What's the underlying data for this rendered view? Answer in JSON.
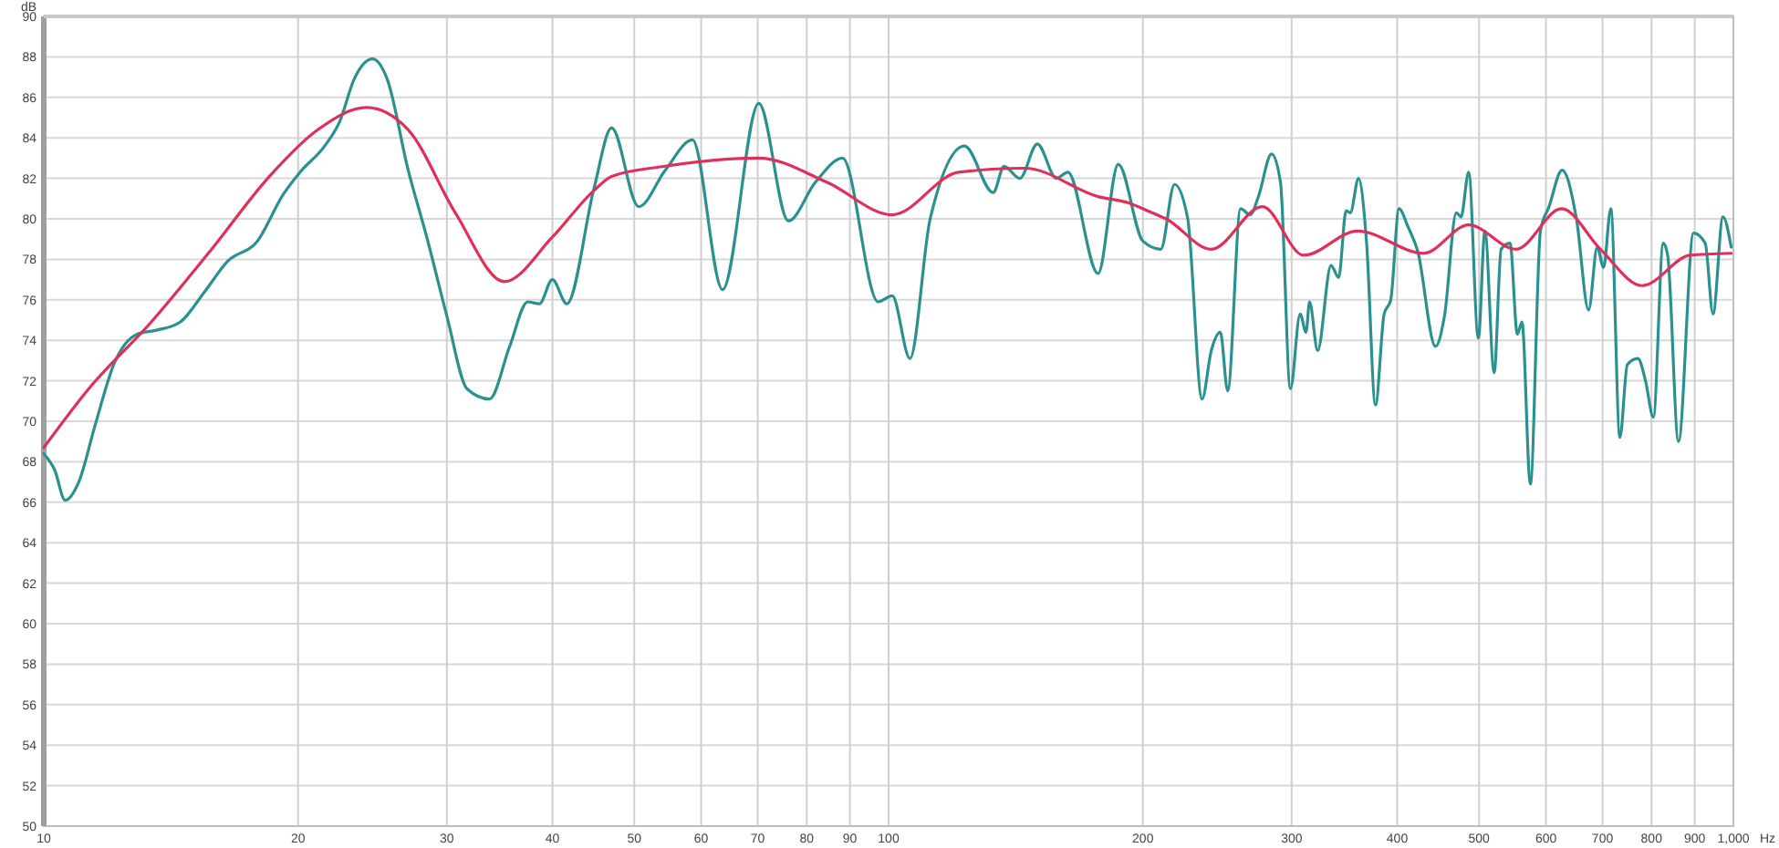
{
  "chart_data": {
    "type": "line",
    "xlabel": "Hz",
    "ylabel": "dB",
    "log": "x",
    "grid": true,
    "line_style": "solid",
    "xlim": [
      10,
      1000
    ],
    "ylim": [
      50,
      90
    ],
    "xticks": [
      10,
      20,
      30,
      40,
      50,
      60,
      70,
      80,
      90,
      100,
      200,
      300,
      400,
      500,
      600,
      700,
      800,
      900,
      {
        "value": 1000,
        "label": "1,000"
      }
    ],
    "yticks": [
      50,
      52,
      54,
      56,
      58,
      60,
      62,
      64,
      66,
      68,
      70,
      72,
      74,
      76,
      78,
      80,
      82,
      84,
      86,
      88,
      90
    ],
    "series": [
      {
        "color": "#2a9090",
        "x": [
          10,
          10.3,
          10.6,
          11,
          11.5,
          12.1,
          12.9,
          13.6,
          14.5,
          15.5,
          16.5,
          17.9,
          19.2,
          20.1,
          21.5,
          22.4,
          23.3,
          24.5,
          25.5,
          27,
          28.4,
          30,
          31.7,
          33.7,
          35.6,
          37.4,
          38.6,
          40,
          41.6,
          44.8,
          47,
          50.6,
          54.4,
          58.6,
          63.6,
          70.2,
          76.1,
          81.9,
          88.2,
          97.2,
          101,
          106,
          112,
          123,
          133,
          137,
          143,
          150,
          158,
          163,
          177,
          187,
          200,
          210,
          218,
          226,
          235,
          241,
          247,
          252,
          261,
          268,
          274,
          284,
          291,
          299,
          307,
          312,
          315,
          322,
          334,
          341,
          348,
          352,
          360,
          368,
          377,
          386,
          393,
          402,
          412,
          423,
          444,
          455,
          470,
          476,
          486,
          499,
          508,
          521,
          531,
          544,
          555,
          562,
          575,
          591,
          605,
          627,
          652,
          674,
          690,
          702,
          716,
          734,
          749,
          771,
          787,
          804,
          826,
          836,
          861,
          897,
          926,
          946,
          972,
          994
        ],
        "values": [
          68.4,
          67.6,
          66.1,
          67,
          69.8,
          72.8,
          74.3,
          74.5,
          74.9,
          76.4,
          77.9,
          78.9,
          81.2,
          82.3,
          83.6,
          84.8,
          86.9,
          87.9,
          86.9,
          82.4,
          79.1,
          75.2,
          71.6,
          71.1,
          73.7,
          75.9,
          75.8,
          77,
          75.8,
          81.5,
          84.5,
          80.6,
          82.4,
          83.9,
          76.5,
          85.7,
          79.9,
          81.8,
          83,
          75.9,
          76.2,
          73.1,
          80,
          83.6,
          81.3,
          82.6,
          82,
          83.7,
          82,
          82.3,
          77.3,
          82.7,
          78.9,
          78.5,
          81.7,
          80,
          71.1,
          73.5,
          74.4,
          71.5,
          80.5,
          80.2,
          81.1,
          83.2,
          81.8,
          71.6,
          75.3,
          74.4,
          75.9,
          73.5,
          77.7,
          77.1,
          80.4,
          80.3,
          82,
          78.8,
          70.8,
          75.3,
          76,
          80.5,
          79.6,
          78.4,
          73.7,
          75.2,
          80.3,
          80.1,
          82.3,
          74.1,
          79.4,
          72.4,
          78.5,
          78.8,
          74.3,
          74.9,
          66.9,
          79.4,
          80.6,
          82.4,
          80,
          75.5,
          78.6,
          77.6,
          80.5,
          69.2,
          72.8,
          73.1,
          72,
          70.2,
          78.8,
          78.2,
          69,
          79.3,
          78.8,
          75.3,
          80.1,
          78.6
        ]
      },
      {
        "color": "#e0305a",
        "x": [
          10,
          11.3,
          13.4,
          15.8,
          18.5,
          21.1,
          24.1,
          27,
          30.7,
          35.1,
          40,
          44.8,
          47,
          54.4,
          70.2,
          84.6,
          101,
          121,
          145,
          177,
          192,
          205,
          213,
          241,
          277,
          310,
          359,
          430,
          486,
          553,
          626,
          696,
          780,
          889,
          994
        ],
        "values": [
          68.7,
          71.6,
          74.9,
          78.5,
          82.1,
          84.4,
          85.5,
          84.4,
          80.3,
          76.9,
          79.1,
          81.4,
          82.1,
          82.6,
          83,
          81.8,
          80.2,
          82.3,
          82.5,
          81.1,
          80.8,
          80.3,
          80,
          78.5,
          80.6,
          78.2,
          79.4,
          78.3,
          79.7,
          78.5,
          80.5,
          78.5,
          76.7,
          78.2,
          78.3
        ]
      }
    ]
  }
}
